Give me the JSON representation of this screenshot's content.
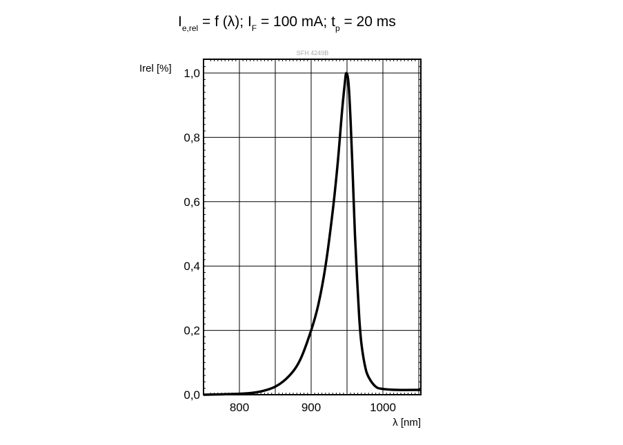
{
  "chart_data": {
    "type": "line",
    "title": {
      "main": "I",
      "main_sub": "e,rel",
      "part2": " = f (λ); I",
      "part2_sub": "F",
      "part3": " = 100 mA; t",
      "part3_sub": "p",
      "part4": " = 20 ms"
    },
    "annotation": "SFH 4249B",
    "xlabel": "λ [nm]",
    "ylabel": "Irel [%]",
    "xlim": [
      750,
      1053
    ],
    "ylim": [
      0,
      1.04
    ],
    "xticks": [
      800,
      900,
      1000
    ],
    "xtick_labels": [
      "800",
      "900",
      "1000"
    ],
    "yticks": [
      0,
      0.2,
      0.4,
      0.6,
      0.8,
      1.0
    ],
    "ytick_labels": [
      "0,0",
      "0,2",
      "0,4",
      "0,6",
      "0,8",
      "1,0"
    ],
    "grid": true,
    "grid_x_step": 50,
    "series": [
      {
        "color": "#000000",
        "x": [
          750,
          800,
          825,
          850,
          870,
          885,
          900,
          910,
          920,
          930,
          937,
          943,
          947,
          949,
          952,
          955,
          958,
          961,
          964,
          967,
          970,
          975,
          980,
          990,
          1000,
          1020,
          1053
        ],
        "y": [
          0.0,
          0.003,
          0.008,
          0.025,
          0.06,
          0.11,
          0.2,
          0.28,
          0.4,
          0.57,
          0.72,
          0.88,
          0.97,
          1.0,
          0.97,
          0.85,
          0.68,
          0.5,
          0.36,
          0.24,
          0.16,
          0.09,
          0.055,
          0.025,
          0.018,
          0.015,
          0.015
        ]
      }
    ]
  }
}
